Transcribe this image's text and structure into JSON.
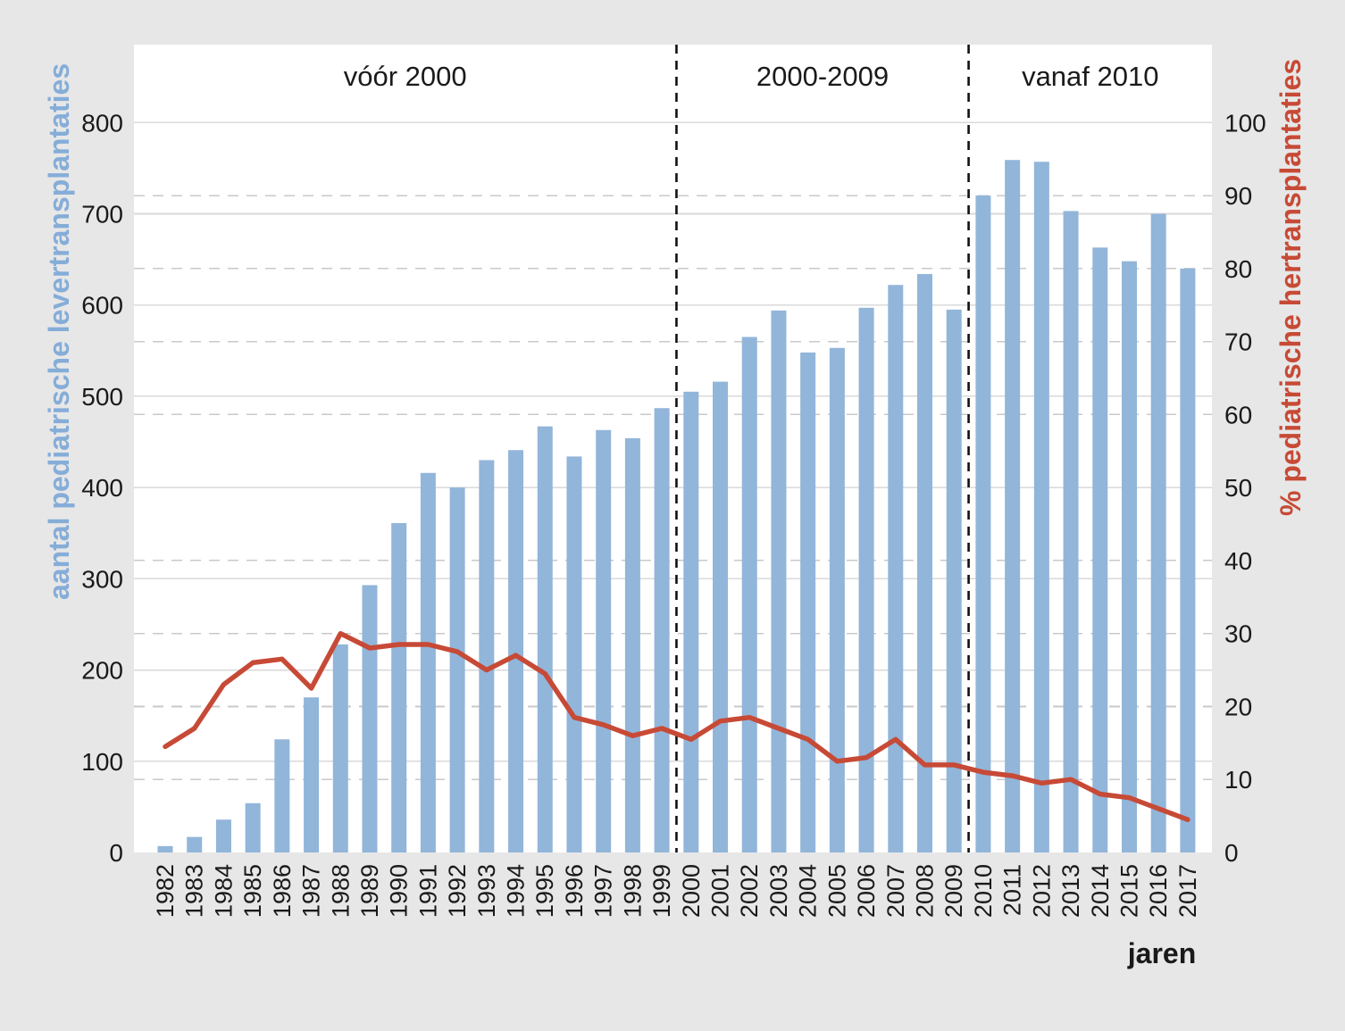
{
  "chart_data": {
    "type": "bar+line-dual-axis",
    "x": [
      1982,
      1983,
      1984,
      1985,
      1986,
      1987,
      1988,
      1989,
      1990,
      1991,
      1992,
      1993,
      1994,
      1995,
      1996,
      1997,
      1998,
      1999,
      2000,
      2001,
      2002,
      2003,
      2004,
      2005,
      2006,
      2007,
      2008,
      2009,
      2010,
      2011,
      2012,
      2013,
      2014,
      2015,
      2016,
      2017
    ],
    "series": [
      {
        "name": "aantal pediatrische levertransplantaties",
        "type": "bar",
        "axis": "left",
        "color": "#92b5da",
        "values": [
          7,
          17,
          36,
          54,
          124,
          170,
          228,
          293,
          361,
          416,
          400,
          430,
          441,
          467,
          434,
          463,
          454,
          487,
          505,
          516,
          565,
          594,
          548,
          553,
          597,
          622,
          634,
          595,
          720,
          759,
          757,
          703,
          663,
          648,
          700,
          640
        ]
      },
      {
        "name": "% pediatrische hertransplantaties",
        "type": "line",
        "axis": "right",
        "color": "#c74a36",
        "values": [
          14.5,
          17,
          23,
          26,
          26.5,
          22.5,
          30,
          28,
          28.5,
          28.5,
          27.5,
          25,
          27,
          24.5,
          18.5,
          17.5,
          16,
          17,
          15.5,
          18,
          18.5,
          17,
          15.5,
          12.5,
          13,
          15.5,
          12,
          12,
          11,
          10.5,
          9.5,
          10,
          8,
          7.5,
          6,
          4.5
        ]
      }
    ],
    "left_axis": {
      "label": "aantal pediatrische levertransplantaties",
      "label_color": "#85add8",
      "min": 0,
      "max": 800,
      "tick_step": 100,
      "ticks": [
        0,
        100,
        200,
        300,
        400,
        500,
        600,
        700,
        800
      ]
    },
    "right_axis": {
      "label": "% pediatrische hertransplantaties",
      "label_color": "#c74a36",
      "min": 0,
      "max": 100,
      "tick_step": 10,
      "ticks": [
        0,
        10,
        20,
        30,
        40,
        50,
        60,
        70,
        80,
        90,
        100
      ]
    },
    "x_axis": {
      "label": "jaren"
    },
    "sections": [
      {
        "label": "vóór 2000"
      },
      {
        "label": "2000-2009"
      },
      {
        "label": "vanaf 2010"
      }
    ],
    "dividers_between_years": [
      [
        1999,
        2000
      ],
      [
        2009,
        2010
      ]
    ],
    "layout": {
      "background_color": "#e7e7e7",
      "plot_background": "#ffffff",
      "solid_grid_color": "#dadada",
      "dashed_grid_color": "#c9c9c9",
      "divider_color": "#111111",
      "grid": "solid lines at left-axis ticks every 100, dashed lines at right-axis ticks every 10%",
      "legend": "none"
    }
  }
}
